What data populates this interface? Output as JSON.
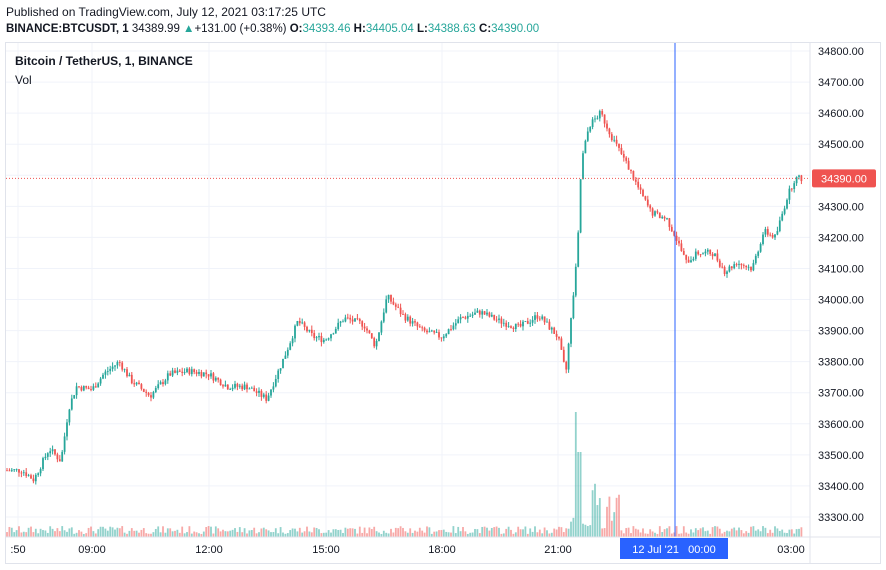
{
  "header": {
    "published": "Published on TradingView.com, July 12, 2021 03:17:25 UTC",
    "symbol": "BINANCE:BTCUSDT, 1",
    "last": "34389.99",
    "change": "+131.00 (+0.38%)",
    "o_label": "O:",
    "o_val": "34393.46",
    "h_label": "H:",
    "h_val": "34405.04",
    "l_label": "L:",
    "l_val": "34388.63",
    "c_label": "C:",
    "c_val": "34390.00"
  },
  "legend": {
    "title": "Bitcoin / TetherUS, 1, BINANCE",
    "vol": "Vol"
  },
  "colors": {
    "up": "#26a69a",
    "down": "#ef5350",
    "price_line": "#ef5350",
    "crosshair": "#2962ff",
    "time_badge": "#2962ff"
  },
  "chart_data": {
    "type": "candlestick",
    "symbol": "BTCUSDT",
    "interval": "1 minute",
    "y_ticks": [
      "34800.00",
      "34700.00",
      "34600.00",
      "34500.00",
      "34400.00",
      "34300.00",
      "34200.00",
      "34100.00",
      "34000.00",
      "33900.00",
      "33800.00",
      "33700.00",
      "33600.00",
      "33500.00",
      "33400.00",
      "33300.00"
    ],
    "ylim": [
      33250,
      34830
    ],
    "x_ticks": [
      ":50",
      "09:00",
      "12:00",
      "15:00",
      "18:00",
      "21:00",
      "03:00"
    ],
    "current_price_label": "34390.00",
    "crosshair_time_label": "12 Jul '21   00:00",
    "approx_close_series": [
      [
        7.2,
        33450
      ],
      [
        7.5,
        33420
      ],
      [
        7.9,
        33520
      ],
      [
        8.2,
        33480
      ],
      [
        8.4,
        33650
      ],
      [
        8.6,
        33720
      ],
      [
        9.0,
        33710
      ],
      [
        9.3,
        33760
      ],
      [
        9.7,
        33800
      ],
      [
        10.0,
        33740
      ],
      [
        10.5,
        33690
      ],
      [
        11.0,
        33760
      ],
      [
        11.5,
        33770
      ],
      [
        12.0,
        33760
      ],
      [
        12.5,
        33720
      ],
      [
        13.0,
        33720
      ],
      [
        13.5,
        33680
      ],
      [
        14.0,
        33830
      ],
      [
        14.3,
        33930
      ],
      [
        14.7,
        33880
      ],
      [
        15.0,
        33870
      ],
      [
        15.5,
        33940
      ],
      [
        16.0,
        33920
      ],
      [
        16.3,
        33850
      ],
      [
        16.6,
        34010
      ],
      [
        17.0,
        33950
      ],
      [
        17.5,
        33900
      ],
      [
        18.0,
        33880
      ],
      [
        18.5,
        33940
      ],
      [
        19.0,
        33960
      ],
      [
        19.5,
        33930
      ],
      [
        20.0,
        33910
      ],
      [
        20.5,
        33950
      ],
      [
        21.0,
        33880
      ],
      [
        21.2,
        33760
      ],
      [
        21.5,
        34150
      ],
      [
        21.6,
        34440
      ],
      [
        21.8,
        34560
      ],
      [
        22.1,
        34600
      ],
      [
        22.4,
        34520
      ],
      [
        22.8,
        34430
      ],
      [
        23.1,
        34350
      ],
      [
        23.4,
        34280
      ],
      [
        23.8,
        34260
      ],
      [
        24.0,
        34210
      ],
      [
        24.3,
        34120
      ],
      [
        24.6,
        34150
      ],
      [
        25.0,
        34150
      ],
      [
        25.3,
        34090
      ],
      [
        25.6,
        34120
      ],
      [
        26.0,
        34100
      ],
      [
        26.3,
        34220
      ],
      [
        26.6,
        34200
      ],
      [
        26.9,
        34330
      ],
      [
        27.1,
        34390
      ]
    ]
  }
}
